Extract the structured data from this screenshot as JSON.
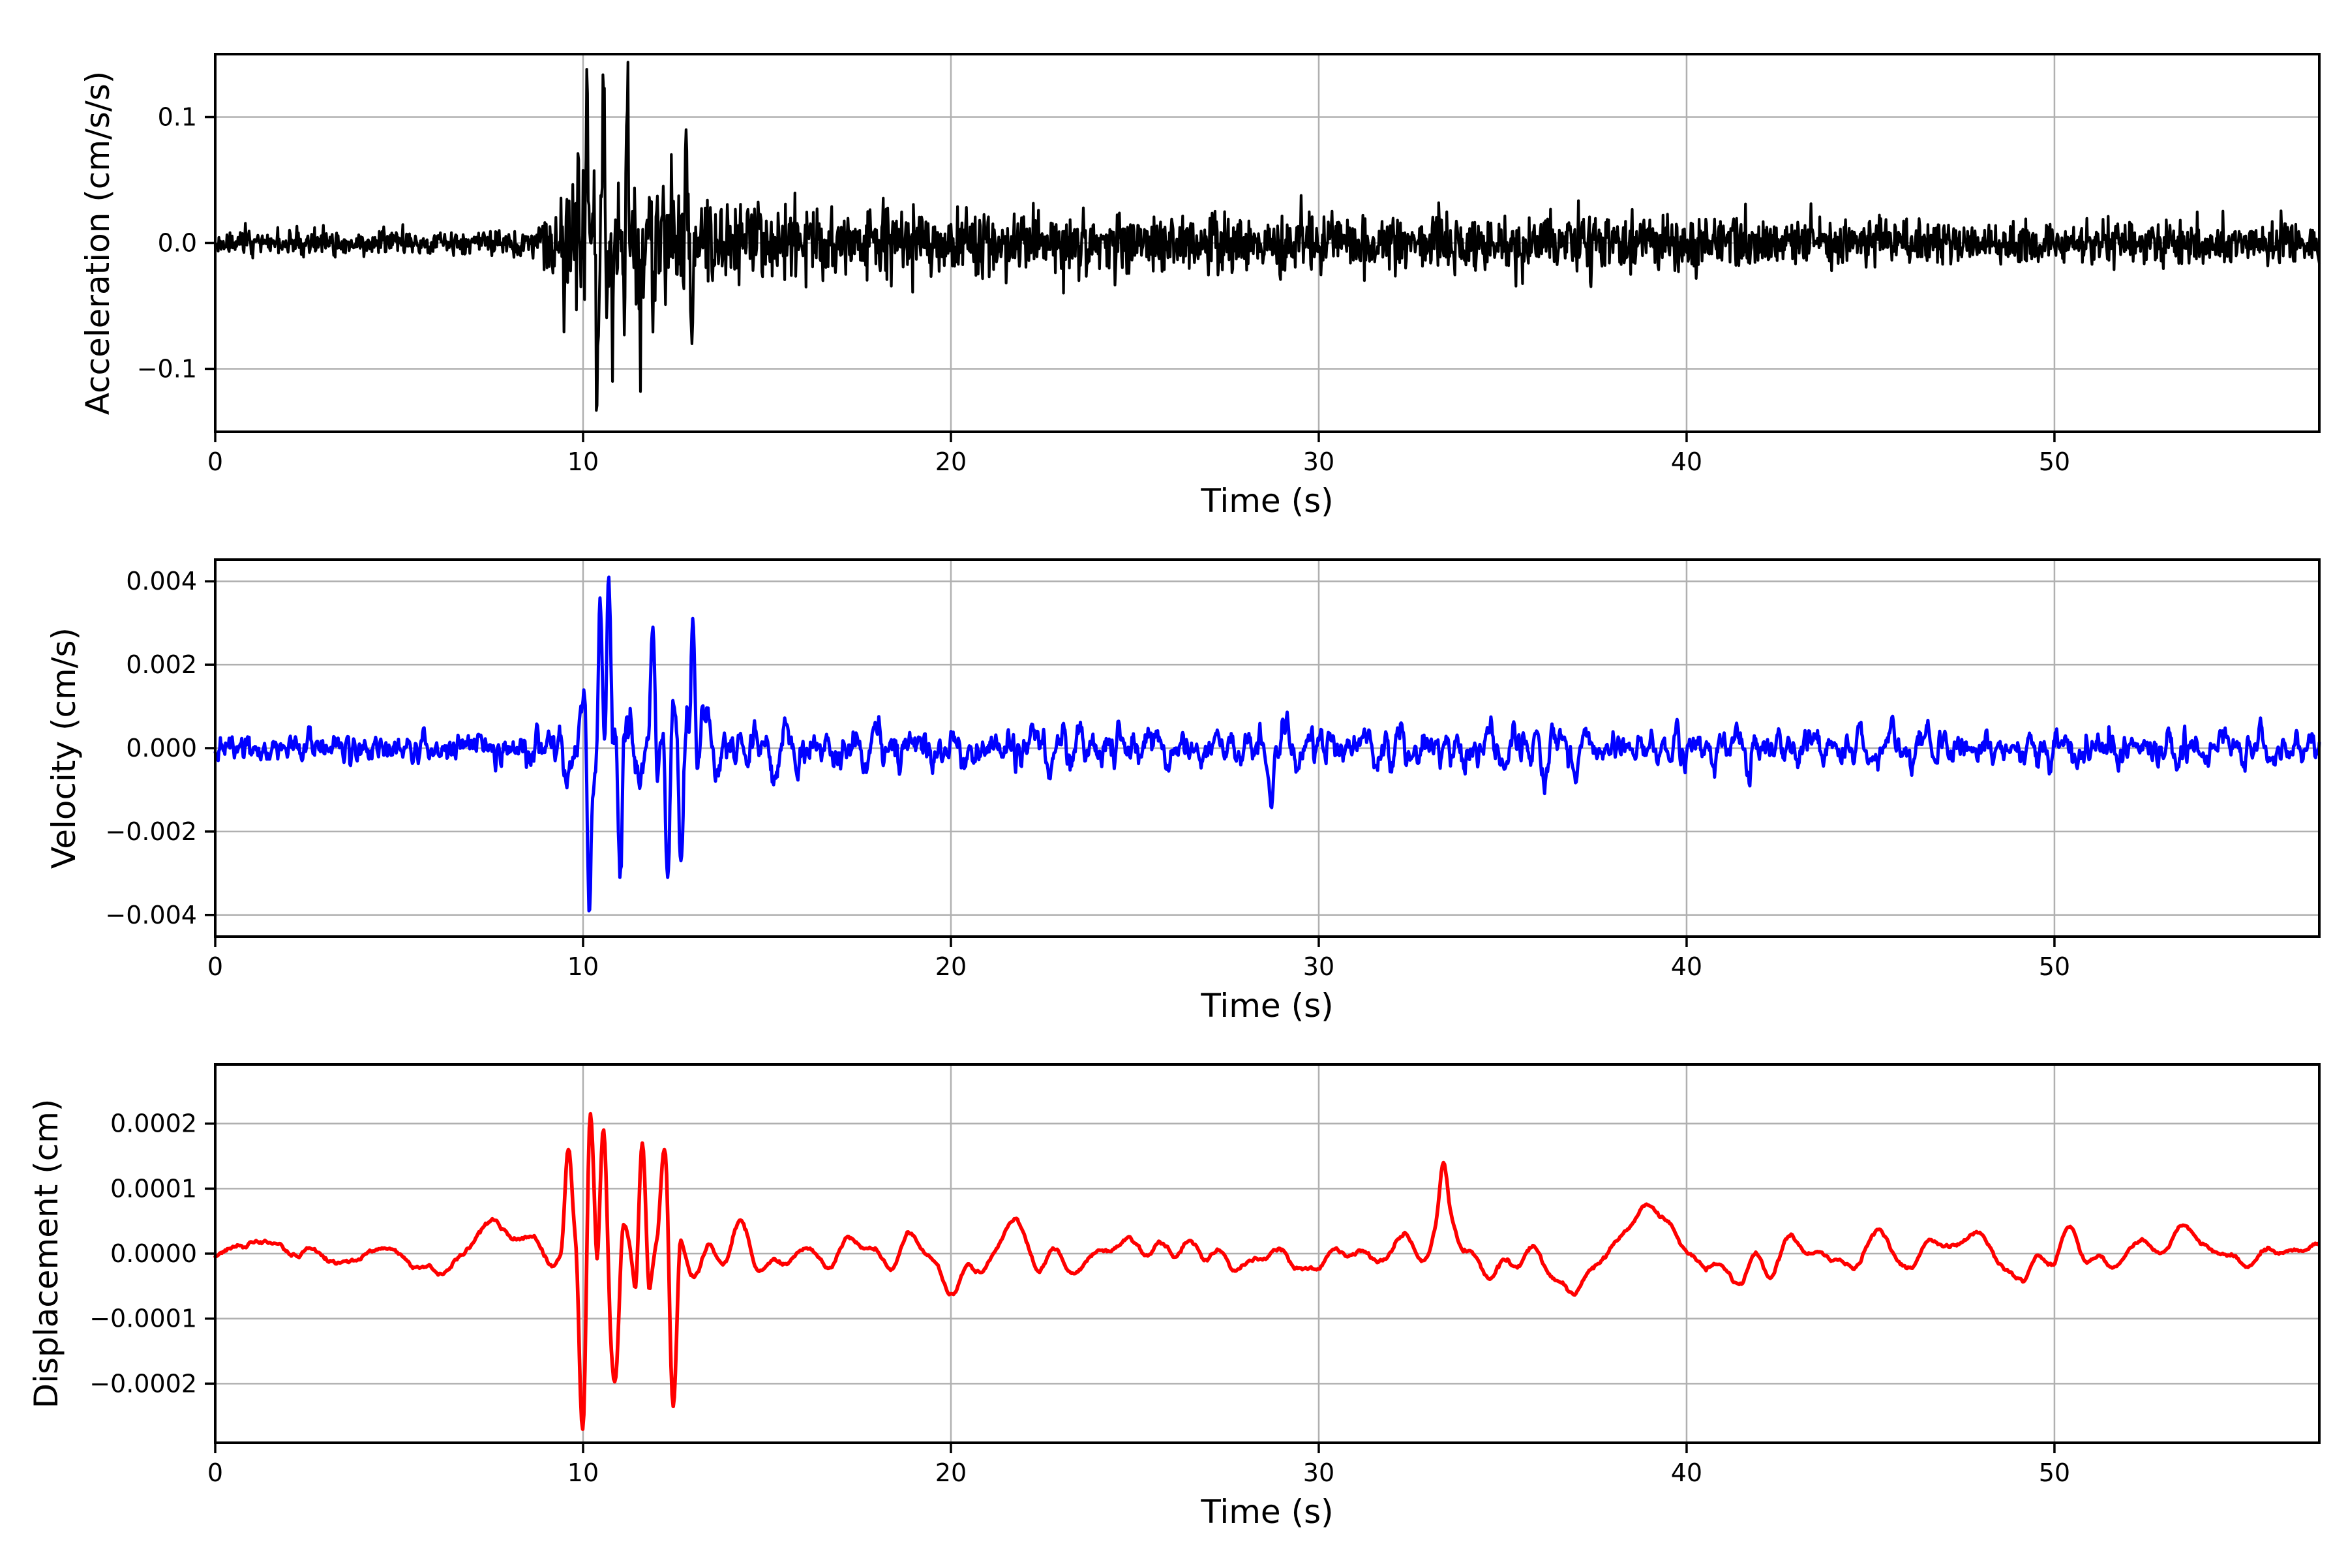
{
  "colors": {
    "background": "#ffffff",
    "grid": "#b0b0b0",
    "axis": "#000000",
    "acceleration_trace": "#000000",
    "velocity_trace": "#0000ff",
    "displacement_trace": "#ff0000"
  },
  "chart_data": [
    {
      "id": "acceleration",
      "type": "line",
      "title": "",
      "xlabel": "Time (s)",
      "ylabel": "Acceleration (cm/s/s)",
      "color": "#000000",
      "line_width": 4.2,
      "xlim": [
        0,
        57.2
      ],
      "ylim": [
        -0.15,
        0.15
      ],
      "grid": true,
      "xticks": [
        {
          "value": 0,
          "label": "0"
        },
        {
          "value": 10,
          "label": "10"
        },
        {
          "value": 20,
          "label": "20"
        },
        {
          "value": 30,
          "label": "30"
        },
        {
          "value": 40,
          "label": "40"
        },
        {
          "value": 50,
          "label": "50"
        }
      ],
      "yticks": [
        {
          "value": 0.1,
          "label": "0.1"
        },
        {
          "value": 0.0,
          "label": "0.0"
        },
        {
          "value": -0.1,
          "label": "−0.1"
        }
      ],
      "extremes": {
        "max": 0.138,
        "max_time": 10.1,
        "min": -0.133,
        "min_time": 10.35
      },
      "signal": {
        "dt": 0.02,
        "seed": 11,
        "spike_halfwidth": 0.06,
        "components": [
          {
            "kind": "noise",
            "smooth": 1,
            "envelope": [
              [
                0,
                0.012
              ],
              [
                8.4,
                0.012
              ],
              [
                8.8,
                0.025
              ],
              [
                9.3,
                0.05
              ],
              [
                9.8,
                0.068
              ],
              [
                10.4,
                0.07
              ],
              [
                11.1,
                0.066
              ],
              [
                11.9,
                0.06
              ],
              [
                12.7,
                0.05
              ],
              [
                13.5,
                0.042
              ],
              [
                14.5,
                0.038
              ],
              [
                16,
                0.036
              ],
              [
                18,
                0.034
              ],
              [
                20,
                0.033
              ],
              [
                23,
                0.03
              ],
              [
                26,
                0.029
              ],
              [
                29,
                0.031
              ],
              [
                32,
                0.028
              ],
              [
                35,
                0.026
              ],
              [
                38,
                0.027
              ],
              [
                41,
                0.025
              ],
              [
                44,
                0.024
              ],
              [
                47,
                0.023
              ],
              [
                50,
                0.022
              ],
              [
                53,
                0.021
              ],
              [
                57.2,
                0.019
              ]
            ]
          },
          {
            "kind": "osc",
            "fmin": 2.5,
            "fmax": 7.0,
            "n": 9,
            "envelope": [
              [
                0,
                0
              ],
              [
                8.7,
                0
              ],
              [
                9.2,
                0.02
              ],
              [
                9.7,
                0.045
              ],
              [
                10.15,
                0.065
              ],
              [
                10.7,
                0.055
              ],
              [
                11.4,
                0.06
              ],
              [
                12.1,
                0.04
              ],
              [
                12.9,
                0.025
              ],
              [
                13.7,
                0.012
              ],
              [
                15,
                0.007
              ],
              [
                18,
                0.004
              ],
              [
                57.2,
                0.003
              ]
            ]
          }
        ],
        "spikes": [
          [
            10.1,
            0.138
          ],
          [
            10.35,
            -0.133
          ],
          [
            10.55,
            0.12
          ],
          [
            10.8,
            -0.11
          ],
          [
            11.2,
            0.105
          ],
          [
            11.55,
            -0.118
          ],
          [
            12.8,
            0.09
          ],
          [
            12.95,
            -0.08
          ]
        ]
      }
    },
    {
      "id": "velocity",
      "type": "line",
      "title": "",
      "xlabel": "Time (s)",
      "ylabel": "Velocity (cm/s)",
      "color": "#0000ff",
      "line_width": 5.0,
      "xlim": [
        0,
        57.2
      ],
      "ylim": [
        -0.00452,
        0.00452
      ],
      "grid": true,
      "xticks": [
        {
          "value": 0,
          "label": "0"
        },
        {
          "value": 10,
          "label": "10"
        },
        {
          "value": 20,
          "label": "20"
        },
        {
          "value": 30,
          "label": "30"
        },
        {
          "value": 40,
          "label": "40"
        },
        {
          "value": 50,
          "label": "50"
        }
      ],
      "yticks": [
        {
          "value": 0.004,
          "label": "0.004"
        },
        {
          "value": 0.002,
          "label": "0.002"
        },
        {
          "value": 0.0,
          "label": "0.000"
        },
        {
          "value": -0.002,
          "label": "−0.002"
        },
        {
          "value": -0.004,
          "label": "−0.004"
        }
      ],
      "extremes": {
        "max": 0.0041,
        "max_time": 10.7,
        "min": -0.0039,
        "min_time": 10.15
      },
      "signal": {
        "dt": 0.02,
        "seed": 23,
        "spike_halfwidth": 0.12,
        "components": [
          {
            "kind": "noise",
            "smooth": 3,
            "envelope": [
              [
                0,
                0.00035
              ],
              [
                8.5,
                0.0004
              ],
              [
                10,
                0.00055
              ],
              [
                14,
                0.0005
              ],
              [
                20,
                0.00045
              ],
              [
                57.2,
                0.00035
              ]
            ]
          },
          {
            "kind": "osc",
            "fmin": 0.9,
            "fmax": 3.2,
            "n": 14,
            "envelope": [
              [
                0,
                0.00015
              ],
              [
                8.4,
                0.00018
              ],
              [
                9.0,
                0.0006
              ],
              [
                9.6,
                0.0013
              ],
              [
                10.1,
                0.0022
              ],
              [
                10.7,
                0.0026
              ],
              [
                11.4,
                0.002
              ],
              [
                12.1,
                0.0021
              ],
              [
                12.9,
                0.002
              ],
              [
                13.6,
                0.0015
              ],
              [
                14.6,
                0.0011
              ],
              [
                16,
                0.00085
              ],
              [
                18,
                0.00075
              ],
              [
                21,
                0.0007
              ],
              [
                25,
                0.00072
              ],
              [
                29,
                0.00074
              ],
              [
                33,
                0.0007
              ],
              [
                37,
                0.00072
              ],
              [
                41,
                0.0007
              ],
              [
                45,
                0.00066
              ],
              [
                49,
                0.00063
              ],
              [
                53,
                0.0006
              ],
              [
                57.2,
                0.00055
              ]
            ]
          }
        ],
        "spikes": [
          [
            10.7,
            0.0041
          ],
          [
            10.15,
            -0.0039
          ],
          [
            10.45,
            0.0036
          ],
          [
            11.0,
            -0.0031
          ],
          [
            11.9,
            0.0029
          ],
          [
            12.3,
            -0.0031
          ],
          [
            13.0,
            0.0029
          ],
          [
            12.65,
            -0.0027
          ],
          [
            28.7,
            -0.0014
          ]
        ]
      }
    },
    {
      "id": "displacement",
      "type": "line",
      "title": "",
      "xlabel": "Time (s)",
      "ylabel": "Displacement (cm)",
      "color": "#ff0000",
      "line_width": 5.6,
      "xlim": [
        0,
        57.2
      ],
      "ylim": [
        -0.000291,
        0.000291
      ],
      "grid": true,
      "xticks": [
        {
          "value": 0,
          "label": "0"
        },
        {
          "value": 10,
          "label": "10"
        },
        {
          "value": 20,
          "label": "20"
        },
        {
          "value": 30,
          "label": "30"
        },
        {
          "value": 40,
          "label": "40"
        },
        {
          "value": 50,
          "label": "50"
        }
      ],
      "yticks": [
        {
          "value": 0.0002,
          "label": "0.0002"
        },
        {
          "value": 0.0001,
          "label": "0.0001"
        },
        {
          "value": 0.0,
          "label": "0.0000"
        },
        {
          "value": -0.0001,
          "label": "−0.0001"
        },
        {
          "value": -0.0002,
          "label": "−0.0002"
        }
      ],
      "extremes": {
        "max": 0.000215,
        "max_time": 10.2,
        "min": -0.00027,
        "min_time": 10.0
      },
      "signal": {
        "dt": 0.03,
        "seed": 37,
        "spike_halfwidth": 0.22,
        "components": [
          {
            "kind": "osc",
            "fmin": 0.13,
            "fmax": 0.42,
            "n": 7,
            "envelope": [
              [
                0,
                3e-05
              ],
              [
                4,
                3.3e-05
              ],
              [
                7,
                4.5e-05
              ],
              [
                9,
                5.5e-05
              ],
              [
                12,
                6e-05
              ],
              [
                15,
                5e-05
              ],
              [
                18,
                4.6e-05
              ],
              [
                21,
                5.5e-05
              ],
              [
                24,
                6e-05
              ],
              [
                27,
                5e-05
              ],
              [
                30,
                5.5e-05
              ],
              [
                33,
                7.5e-05
              ],
              [
                36,
                6.5e-05
              ],
              [
                39,
                6e-05
              ],
              [
                42,
                5.5e-05
              ],
              [
                45,
                5e-05
              ],
              [
                48,
                6.5e-05
              ],
              [
                51,
                5.5e-05
              ],
              [
                54,
                5.5e-05
              ],
              [
                57.2,
                5e-05
              ]
            ]
          },
          {
            "kind": "osc",
            "fmin": 0.55,
            "fmax": 1.3,
            "n": 9,
            "envelope": [
              [
                0,
                9e-06
              ],
              [
                6,
                1.1e-05
              ],
              [
                8.2,
                2.8e-05
              ],
              [
                9.3,
                9e-05
              ],
              [
                9.9,
                0.00017
              ],
              [
                10.5,
                0.00015
              ],
              [
                11.2,
                0.00012
              ],
              [
                12.1,
                0.00015
              ],
              [
                13,
                0.0001
              ],
              [
                14,
                7e-05
              ],
              [
                15.5,
                5.5e-05
              ],
              [
                18,
                4.5e-05
              ],
              [
                22,
                4e-05
              ],
              [
                26,
                3.6e-05
              ],
              [
                30,
                4e-05
              ],
              [
                34,
                4.5e-05
              ],
              [
                38,
                4e-05
              ],
              [
                42,
                3.6e-05
              ],
              [
                46,
                3.8e-05
              ],
              [
                50,
                3.6e-05
              ],
              [
                53,
                3.8e-05
              ],
              [
                57.2,
                3e-05
              ]
            ]
          },
          {
            "kind": "noise",
            "smooth": 31,
            "envelope": [
              [
                0,
                1.5e-05
              ],
              [
                57.2,
                1.5e-05
              ]
            ]
          }
        ],
        "spikes": [
          [
            9.6,
            0.00016
          ],
          [
            10.0,
            -0.00027
          ],
          [
            10.2,
            0.000215
          ],
          [
            10.55,
            0.00019
          ],
          [
            10.9,
            -0.00019
          ],
          [
            11.6,
            0.00017
          ],
          [
            12.2,
            0.00016
          ],
          [
            12.45,
            -0.000235
          ],
          [
            33.4,
            0.00014
          ]
        ]
      }
    }
  ]
}
